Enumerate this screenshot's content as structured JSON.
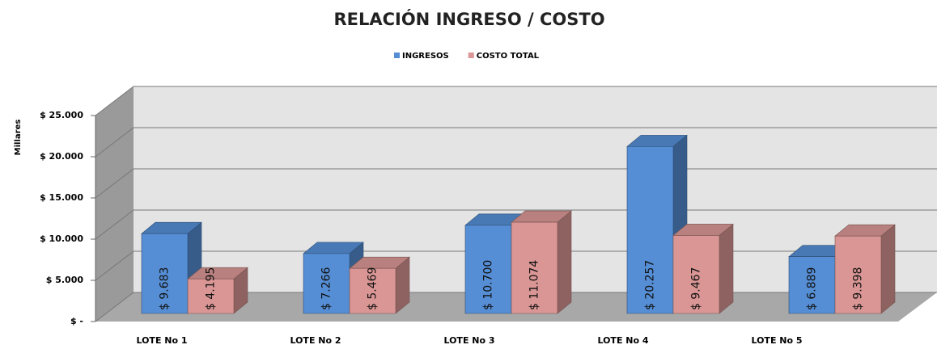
{
  "chart_data": {
    "type": "bar3d",
    "title": "RELACIÓN INGRESO / COSTO",
    "y_axis_label": "Millares",
    "categories": [
      "LOTE No 1",
      "LOTE No 2",
      "LOTE No 3",
      "LOTE No 4",
      "LOTE No 5"
    ],
    "series": [
      {
        "name": "INGRESOS",
        "color": "#558ed5",
        "values": [
          9683,
          7266,
          10700,
          20257,
          6889
        ],
        "value_labels": [
          "$ 9.683",
          "$ 7.266",
          "$ 10.700",
          "$ 20.257",
          "$ 6.889"
        ]
      },
      {
        "name": "COSTO TOTAL",
        "color": "#d99694",
        "values": [
          4195,
          5469,
          11074,
          9467,
          9398
        ],
        "value_labels": [
          "$ 4.195",
          "$ 5.469",
          "$ 11.074",
          "$ 9.467",
          "$ 9.398"
        ]
      }
    ],
    "ylim": [
      0,
      25000
    ],
    "yticks": [
      {
        "value": 0,
        "label": "$ -"
      },
      {
        "value": 5000,
        "label": "$ 5.000"
      },
      {
        "value": 10000,
        "label": "$ 10.000"
      },
      {
        "value": 15000,
        "label": "$ 15.000"
      },
      {
        "value": 20000,
        "label": "$ 20.000"
      },
      {
        "value": 25000,
        "label": "$ 25.000"
      }
    ],
    "grid": true,
    "legend": "top"
  }
}
